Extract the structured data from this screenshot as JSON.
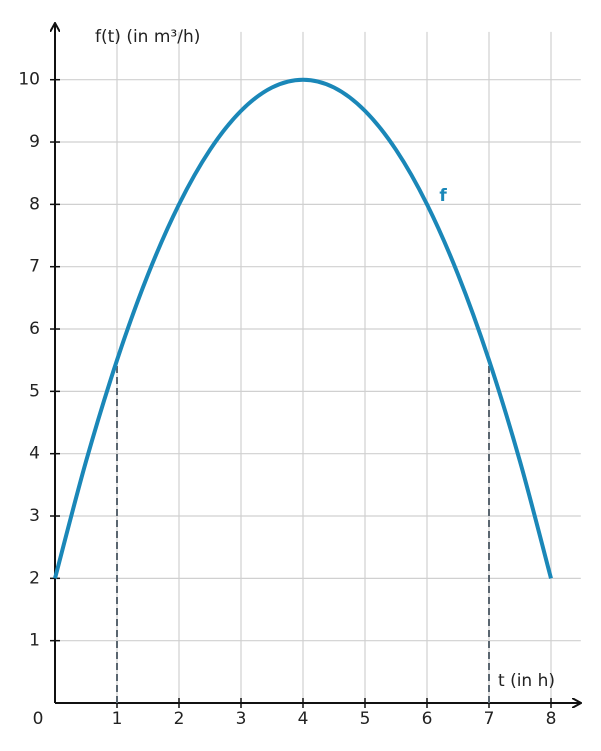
{
  "chart_data": {
    "type": "line",
    "y_label": "f(t) (in m³/h)",
    "x_label": "t (in h)",
    "x": [
      0,
      0.5,
      1,
      1.5,
      2,
      2.5,
      3,
      3.5,
      4,
      4.5,
      5,
      5.5,
      6,
      6.5,
      7,
      7.5,
      8
    ],
    "series": [
      {
        "name": "f",
        "color": "#1a87b8",
        "values": [
          2,
          3.875,
          5.5,
          6.875,
          8,
          8.875,
          9.5,
          9.875,
          10,
          9.875,
          9.5,
          8.875,
          8,
          6.875,
          5.5,
          3.875,
          2
        ]
      }
    ],
    "dashed_lines": {
      "x": [
        1,
        7
      ],
      "y": [
        5.5,
        5.5
      ]
    },
    "xlim": [
      0,
      8.4
    ],
    "ylim": [
      0,
      10.8
    ],
    "xticks": [
      0,
      1,
      2,
      3,
      4,
      5,
      6,
      7,
      8
    ],
    "yticks": [
      1,
      2,
      3,
      4,
      5,
      6,
      7,
      8,
      9,
      10
    ],
    "grid": true
  }
}
